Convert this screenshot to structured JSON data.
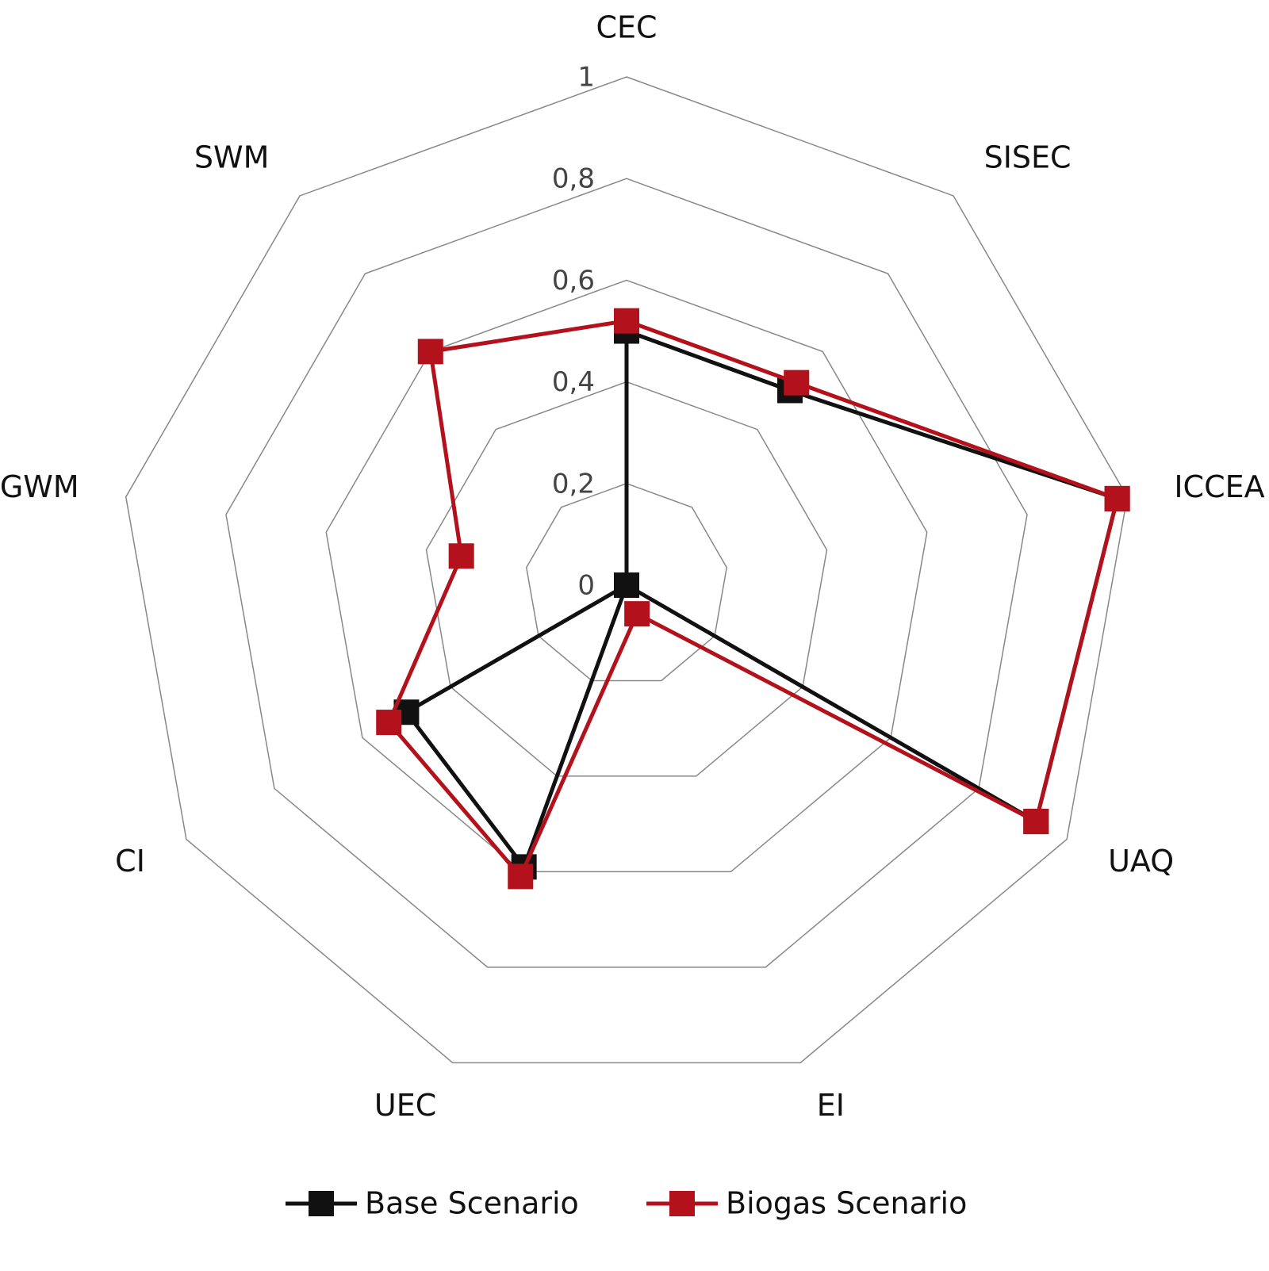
{
  "chart_data": {
    "type": "radar",
    "categories": [
      "CEC",
      "SISEC",
      "ICCEA",
      "UAQ",
      "EI",
      "UEC",
      "CI",
      "GWM",
      "SWM"
    ],
    "series": [
      {
        "name": "Base Scenario",
        "color": "#111111",
        "values": [
          0.5,
          0.5,
          0.98,
          0.93,
          0,
          0.59,
          0.5,
          0,
          0
        ]
      },
      {
        "name": "Biogas Scenario",
        "color": "#b3121c",
        "values": [
          0.52,
          0.52,
          0.98,
          0.93,
          0.06,
          0.61,
          0.54,
          0.33,
          0.6
        ]
      }
    ],
    "ylim": [
      0,
      1
    ],
    "yticks": [
      0,
      {
        "value": 0.2,
        "label": "0,2"
      },
      {
        "value": 0.4,
        "label": "0,4"
      },
      {
        "value": 0.6,
        "label": "0,6"
      },
      {
        "value": 0.8,
        "label": "0,8"
      },
      1
    ],
    "grid": true,
    "legend": "bottom"
  }
}
